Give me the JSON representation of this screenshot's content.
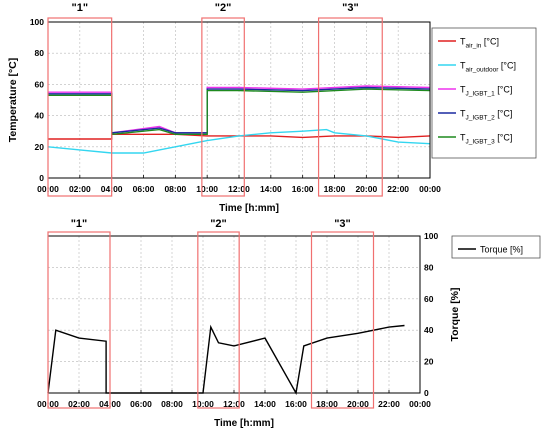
{
  "chart_data": [
    {
      "type": "line",
      "xlabel": "Time [h:mm]",
      "ylabel": "Temperature [°C]",
      "ylim": [
        0,
        100
      ],
      "xlim": [
        "00:00",
        "24:00"
      ],
      "x_ticks": [
        "00:00",
        "02:00",
        "04:00",
        "06:00",
        "08:00",
        "10:00",
        "12:00",
        "14:00",
        "16:00",
        "18:00",
        "20:00",
        "22:00",
        "00:00"
      ],
      "y_ticks": [
        0,
        20,
        40,
        60,
        80,
        100
      ],
      "grid": true,
      "legend_position": "right",
      "regions": [
        {
          "label": "\"1\"",
          "start": "00:00",
          "end": "04:00"
        },
        {
          "label": "\"2\"",
          "start": "09:40",
          "end": "12:20"
        },
        {
          "label": "\"3\"",
          "start": "17:00",
          "end": "21:00"
        }
      ],
      "series": [
        {
          "name": "T_air_in [°C]",
          "label_base": "T",
          "label_sub": "air_in",
          "label_unit": " [°C]",
          "color": "#e02020",
          "x": [
            "00:00",
            "04:00",
            "04:00",
            "08:00",
            "10:00",
            "12:00",
            "14:00",
            "16:00",
            "18:00",
            "20:00",
            "22:00",
            "24:00"
          ],
          "y": [
            25,
            25,
            28,
            28,
            27,
            27,
            27,
            26,
            27,
            27,
            26,
            27
          ]
        },
        {
          "name": "T_air_outdoor [°C]",
          "label_base": "T",
          "label_sub": "air_outdoor",
          "label_unit": " [°C]",
          "color": "#33d6f0",
          "x": [
            "00:00",
            "02:00",
            "04:00",
            "06:00",
            "08:00",
            "10:00",
            "12:00",
            "14:00",
            "16:00",
            "17:30",
            "18:00",
            "20:00",
            "22:00",
            "24:00"
          ],
          "y": [
            20,
            18,
            16,
            16,
            20,
            24,
            27,
            29,
            30,
            31,
            29,
            27,
            23,
            22
          ]
        },
        {
          "name": "T_J_IGBT_1 [°C]",
          "label_base": "T",
          "label_sub": "J_IGBT_1",
          "label_unit": " [°C]",
          "color": "#ee33ee",
          "x": [
            "00:00",
            "04:00",
            "04:00",
            "07:00",
            "08:00",
            "10:00",
            "10:00",
            "12:00",
            "16:00",
            "20:00",
            "24:00"
          ],
          "y": [
            55,
            55,
            29,
            33,
            29,
            29,
            58,
            58,
            57,
            59,
            58
          ]
        },
        {
          "name": "T_J_IGBT_2 [°C]",
          "label_base": "T",
          "label_sub": "J_IGBT_2",
          "label_unit": " [°C]",
          "color": "#1a2aa0",
          "x": [
            "00:00",
            "04:00",
            "04:00",
            "07:00",
            "08:00",
            "10:00",
            "10:00",
            "12:00",
            "16:00",
            "20:00",
            "24:00"
          ],
          "y": [
            54,
            54,
            29,
            32,
            29,
            29,
            57,
            57,
            56,
            58,
            57
          ]
        },
        {
          "name": "T_J_IGBT_3 [°C]",
          "label_base": "T",
          "label_sub": "J_IGBT_3",
          "label_unit": " [°C]",
          "color": "#1e8a1e",
          "x": [
            "00:00",
            "04:00",
            "04:00",
            "07:00",
            "08:00",
            "10:00",
            "10:00",
            "12:00",
            "16:00",
            "20:00",
            "24:00"
          ],
          "y": [
            53,
            53,
            28,
            31,
            28,
            28,
            56,
            56,
            55,
            57,
            56
          ]
        }
      ]
    },
    {
      "type": "line",
      "xlabel": "Time [h:mm]",
      "ylabel": "Torque [%]",
      "ylim": [
        0,
        100
      ],
      "xlim": [
        "00:00",
        "24:00"
      ],
      "x_ticks": [
        "00:00",
        "02:00",
        "04:00",
        "06:00",
        "08:00",
        "10:00",
        "12:00",
        "14:00",
        "16:00",
        "18:00",
        "20:00",
        "22:00",
        "00:00"
      ],
      "y_ticks": [
        0,
        20,
        40,
        60,
        80,
        100
      ],
      "grid": true,
      "legend_position": "right",
      "regions": [
        {
          "label": "\"1\"",
          "start": "00:00",
          "end": "04:00"
        },
        {
          "label": "\"2\"",
          "start": "09:40",
          "end": "12:20"
        },
        {
          "label": "\"3\"",
          "start": "17:00",
          "end": "21:00"
        }
      ],
      "series": [
        {
          "name": "Torque [%]",
          "color": "#000000",
          "x": [
            "00:00",
            "00:30",
            "02:00",
            "03:45",
            "03:45",
            "10:00",
            "10:30",
            "11:00",
            "12:00",
            "14:00",
            "16:00",
            "16:30",
            "18:00",
            "20:00",
            "22:00",
            "23:00"
          ],
          "y": [
            0,
            40,
            35,
            33,
            0,
            0,
            42,
            32,
            30,
            35,
            0,
            30,
            35,
            38,
            42,
            43
          ]
        }
      ]
    }
  ]
}
